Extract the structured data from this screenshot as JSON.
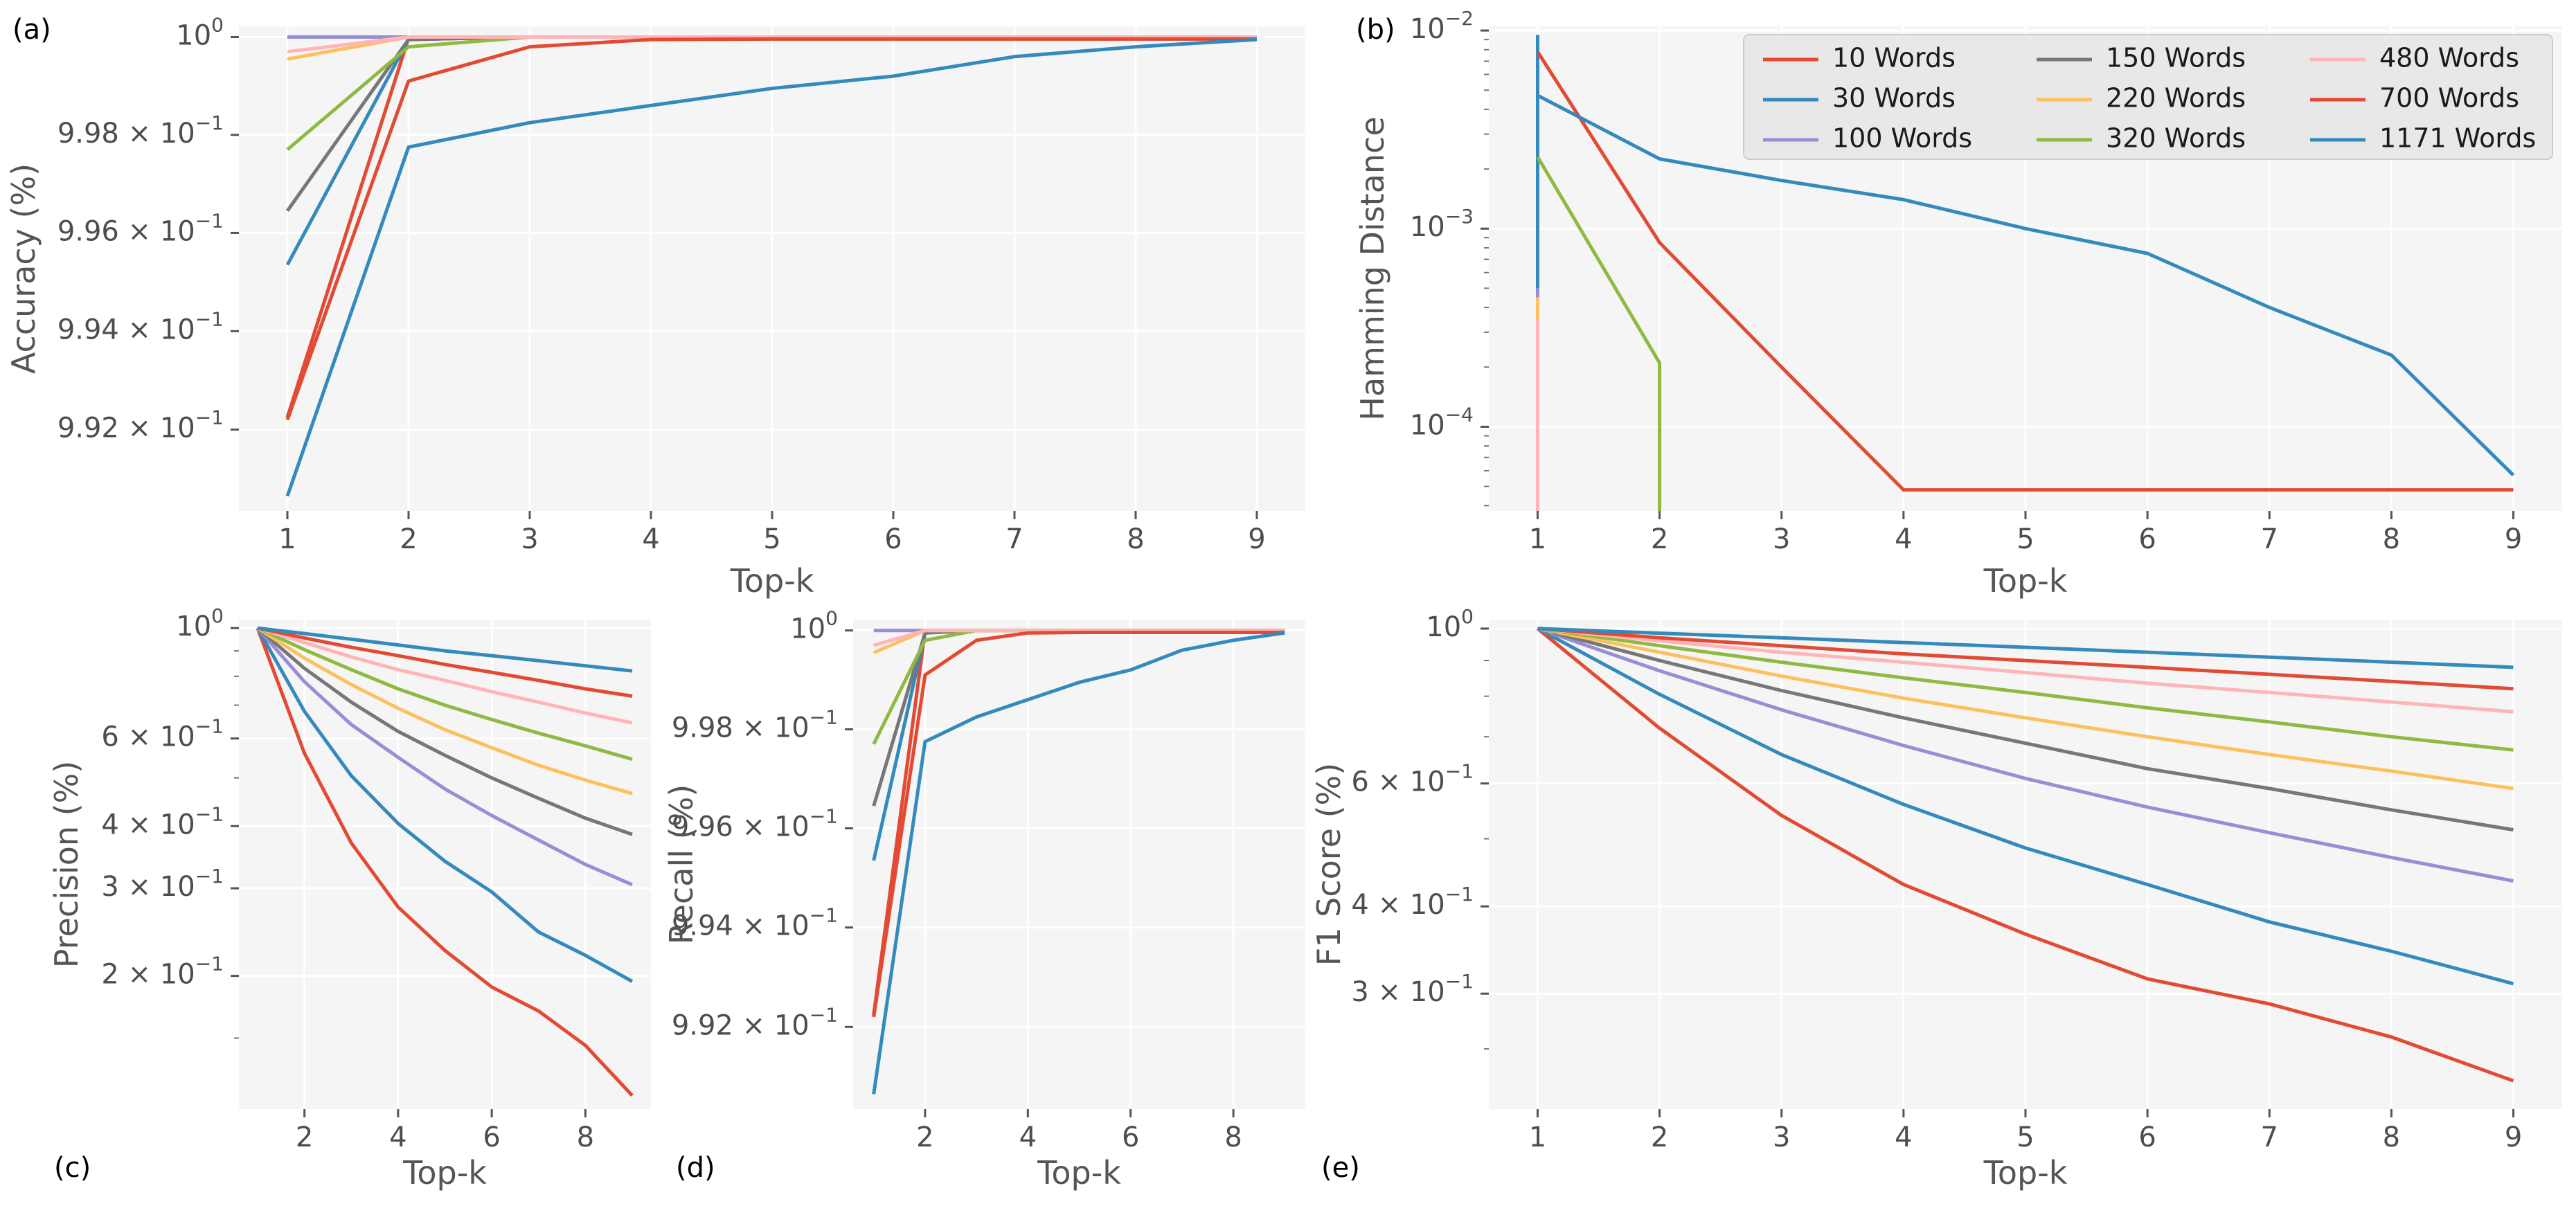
{
  "figure": {
    "series_names": [
      "10 Words",
      "30 Words",
      "100 Words",
      "150 Words",
      "220 Words",
      "320 Words",
      "480 Words",
      "700 Words",
      "1171 Words"
    ],
    "series_colors": [
      "#e24a33",
      "#348abd",
      "#988ed5",
      "#777777",
      "#fbc15e",
      "#8eba42",
      "#ffb5b8",
      "#e24a33",
      "#348abd"
    ]
  },
  "chart_data": [
    {
      "id": "a",
      "tag": "(a)",
      "type": "line",
      "yscale": "log",
      "xlabel": "Top-k",
      "ylabel": "Accuracy (%)",
      "x": [
        1,
        2,
        3,
        4,
        5,
        6,
        7,
        8,
        9
      ],
      "xlim": [
        0.6,
        9.4
      ],
      "xticks": [
        "1",
        "2",
        "3",
        "4",
        "5",
        "6",
        "7",
        "8",
        "9"
      ],
      "ylim": [
        0.99035,
        1.00022
      ],
      "yticks": [
        {
          "value": 1.0,
          "base": "10",
          "exp": "0",
          "mant": ""
        },
        {
          "value": 0.998,
          "base": "10",
          "exp": "−1",
          "mant": "9.98"
        },
        {
          "value": 0.996,
          "base": "10",
          "exp": "−1",
          "mant": "9.96"
        },
        {
          "value": 0.994,
          "base": "10",
          "exp": "−1",
          "mant": "9.94"
        },
        {
          "value": 0.992,
          "base": "10",
          "exp": "−1",
          "mant": "9.92"
        }
      ],
      "series": [
        {
          "name": "10 Words",
          "values": [
            0.99225,
            0.99998,
            1,
            1,
            1,
            1,
            1,
            1,
            1
          ]
        },
        {
          "name": "30 Words",
          "values": [
            0.99535,
            0.99995,
            1,
            1,
            1,
            1,
            1,
            1,
            1
          ]
        },
        {
          "name": "100 Words",
          "values": [
            1,
            1,
            1,
            1,
            1,
            1,
            1,
            1,
            1
          ]
        },
        {
          "name": "150 Words",
          "values": [
            0.99645,
            0.99995,
            1,
            1,
            1,
            1,
            1,
            1,
            1
          ]
        },
        {
          "name": "220 Words",
          "values": [
            0.99955,
            1,
            1,
            1,
            1,
            1,
            1,
            1,
            1
          ]
        },
        {
          "name": "320 Words",
          "values": [
            0.9977,
            0.9998,
            1,
            1,
            1,
            1,
            1,
            1,
            1
          ]
        },
        {
          "name": "480 Words",
          "values": [
            0.9997,
            1,
            1,
            1,
            1,
            1,
            1,
            1,
            1
          ]
        },
        {
          "name": "700 Words",
          "values": [
            0.9922,
            0.9991,
            0.9998,
            0.99995,
            0.99996,
            0.99996,
            0.99996,
            0.99996,
            0.99996
          ]
        },
        {
          "name": "1171 Words",
          "values": [
            0.99065,
            0.99775,
            0.99825,
            0.9986,
            0.99895,
            0.9992,
            0.9996,
            0.9998,
            0.99995
          ]
        }
      ]
    },
    {
      "id": "b",
      "tag": "(b)",
      "type": "line",
      "yscale": "log",
      "xlabel": "Top-k",
      "ylabel": "Hamming Distance",
      "x": [
        1,
        2,
        3,
        4,
        5,
        6,
        7,
        8,
        9
      ],
      "xlim": [
        0.6,
        9.4
      ],
      "xticks": [
        "1",
        "2",
        "3",
        "4",
        "5",
        "6",
        "7",
        "8",
        "9"
      ],
      "ylim": [
        3.76e-05,
        0.0105
      ],
      "yticks": [
        {
          "value": 0.01,
          "base": "10",
          "exp": "−2",
          "mant": ""
        },
        {
          "value": 0.001,
          "base": "10",
          "exp": "−3",
          "mant": ""
        },
        {
          "value": 0.0001,
          "base": "10",
          "exp": "−4",
          "mant": ""
        }
      ],
      "series": [
        {
          "name": "10 Words",
          "values": [
            0.0092,
            null,
            null,
            null,
            null,
            null,
            null,
            null,
            null
          ]
        },
        {
          "name": "30 Words",
          "values": [
            0.0095,
            null,
            null,
            null,
            null,
            null,
            null,
            null,
            null
          ]
        },
        {
          "name": "100 Words",
          "values": [
            0.0005,
            null,
            null,
            null,
            null,
            null,
            null,
            null,
            null
          ]
        },
        {
          "name": "150 Words",
          "values": [
            0.00045,
            null,
            null,
            null,
            null,
            null,
            null,
            null,
            null
          ]
        },
        {
          "name": "220 Words",
          "values": [
            0.00045,
            null,
            null,
            null,
            null,
            null,
            null,
            null,
            null
          ]
        },
        {
          "name": "320 Words",
          "values": [
            0.0023,
            0.00021,
            null,
            null,
            null,
            null,
            null,
            null,
            null
          ]
        },
        {
          "name": "480 Words",
          "values": [
            0.00035,
            null,
            null,
            null,
            null,
            null,
            null,
            null,
            null
          ]
        },
        {
          "name": "700 Words",
          "values": [
            0.0078,
            0.00085,
            0.0002,
            4.8e-05,
            4.8e-05,
            4.8e-05,
            4.8e-05,
            4.8e-05,
            4.8e-05
          ]
        },
        {
          "name": "1171 Words",
          "values": [
            0.0047,
            0.00225,
            0.00175,
            0.0014,
            0.001,
            0.00075,
            0.0004,
            0.00023,
            5.7e-05
          ]
        }
      ],
      "legend": {
        "location": "top-right",
        "columns": 3
      }
    },
    {
      "id": "c",
      "tag": "(c)",
      "type": "line",
      "yscale": "log",
      "xlabel": "Top-k",
      "ylabel": "Precision (%)",
      "x": [
        1,
        2,
        3,
        4,
        5,
        6,
        7,
        8,
        9
      ],
      "xlim": [
        0.6,
        9.4
      ],
      "xticks": [
        "2",
        "4",
        "6",
        "8"
      ],
      "xtick_values": [
        2,
        4,
        6,
        8
      ],
      "ylim": [
        0.108,
        1.04
      ],
      "yticks": [
        {
          "value": 1.0,
          "base": "10",
          "exp": "0",
          "mant": ""
        },
        {
          "value": 0.6,
          "base": "10",
          "exp": "−1",
          "mant": "6"
        },
        {
          "value": 0.4,
          "base": "10",
          "exp": "−1",
          "mant": "4"
        },
        {
          "value": 0.3,
          "base": "10",
          "exp": "−1",
          "mant": "3"
        },
        {
          "value": 0.2,
          "base": "10",
          "exp": "−1",
          "mant": "2"
        }
      ],
      "series": [
        {
          "name": "10 Words",
          "values": [
            1.0,
            0.56,
            0.37,
            0.275,
            0.225,
            0.19,
            0.17,
            0.145,
            0.115
          ]
        },
        {
          "name": "30 Words",
          "values": [
            1.0,
            0.68,
            0.505,
            0.405,
            0.34,
            0.295,
            0.245,
            0.22,
            0.195
          ]
        },
        {
          "name": "100 Words",
          "values": [
            1.0,
            0.78,
            0.64,
            0.55,
            0.475,
            0.42,
            0.375,
            0.335,
            0.305
          ]
        },
        {
          "name": "150 Words",
          "values": [
            1.0,
            0.83,
            0.71,
            0.62,
            0.555,
            0.5,
            0.455,
            0.415,
            0.385
          ]
        },
        {
          "name": "220 Words",
          "values": [
            1.0,
            0.87,
            0.77,
            0.69,
            0.625,
            0.575,
            0.53,
            0.495,
            0.465
          ]
        },
        {
          "name": "320 Words",
          "values": [
            1.0,
            0.905,
            0.825,
            0.755,
            0.7,
            0.655,
            0.615,
            0.58,
            0.545
          ]
        },
        {
          "name": "480 Words",
          "values": [
            1.0,
            0.935,
            0.875,
            0.825,
            0.785,
            0.745,
            0.71,
            0.675,
            0.645
          ]
        },
        {
          "name": "700 Words",
          "values": [
            1.0,
            0.955,
            0.915,
            0.88,
            0.845,
            0.815,
            0.785,
            0.755,
            0.73
          ]
        },
        {
          "name": "1171 Words",
          "values": [
            1.0,
            0.975,
            0.95,
            0.925,
            0.9,
            0.88,
            0.86,
            0.84,
            0.82
          ]
        }
      ]
    },
    {
      "id": "d",
      "tag": "(d)",
      "type": "line",
      "yscale": "log",
      "xlabel": "Top-k",
      "ylabel": "Recall (%)",
      "x": [
        1,
        2,
        3,
        4,
        5,
        6,
        7,
        8,
        9
      ],
      "xlim": [
        0.6,
        9.4
      ],
      "xticks": [
        "2",
        "4",
        "6",
        "8"
      ],
      "xtick_values": [
        2,
        4,
        6,
        8
      ],
      "ylim": [
        0.99035,
        1.00022
      ],
      "yticks": [
        {
          "value": 1.0,
          "base": "10",
          "exp": "0",
          "mant": ""
        },
        {
          "value": 0.998,
          "base": "10",
          "exp": "−1",
          "mant": "9.98"
        },
        {
          "value": 0.996,
          "base": "10",
          "exp": "−1",
          "mant": "9.96"
        },
        {
          "value": 0.994,
          "base": "10",
          "exp": "−1",
          "mant": "9.94"
        },
        {
          "value": 0.992,
          "base": "10",
          "exp": "−1",
          "mant": "9.92"
        }
      ],
      "series": [
        {
          "name": "10 Words",
          "values": [
            0.99225,
            0.99998,
            1,
            1,
            1,
            1,
            1,
            1,
            1
          ]
        },
        {
          "name": "30 Words",
          "values": [
            0.99535,
            0.99995,
            1,
            1,
            1,
            1,
            1,
            1,
            1
          ]
        },
        {
          "name": "100 Words",
          "values": [
            1,
            1,
            1,
            1,
            1,
            1,
            1,
            1,
            1
          ]
        },
        {
          "name": "150 Words",
          "values": [
            0.99645,
            0.99995,
            1,
            1,
            1,
            1,
            1,
            1,
            1
          ]
        },
        {
          "name": "220 Words",
          "values": [
            0.99955,
            1,
            1,
            1,
            1,
            1,
            1,
            1,
            1
          ]
        },
        {
          "name": "320 Words",
          "values": [
            0.9977,
            0.9998,
            1,
            1,
            1,
            1,
            1,
            1,
            1
          ]
        },
        {
          "name": "480 Words",
          "values": [
            0.9997,
            1,
            1,
            1,
            1,
            1,
            1,
            1,
            1
          ]
        },
        {
          "name": "700 Words",
          "values": [
            0.9922,
            0.9991,
            0.9998,
            0.99995,
            0.99996,
            0.99996,
            0.99996,
            0.99996,
            0.99996
          ]
        },
        {
          "name": "1171 Words",
          "values": [
            0.99065,
            0.99775,
            0.99825,
            0.9986,
            0.99895,
            0.9992,
            0.9996,
            0.9998,
            0.99995
          ]
        }
      ]
    },
    {
      "id": "e",
      "tag": "(e)",
      "type": "line",
      "yscale": "log",
      "xlabel": "Top-k",
      "ylabel": "F1 Score (%)",
      "x": [
        1,
        2,
        3,
        4,
        5,
        6,
        7,
        8,
        9
      ],
      "xlim": [
        0.6,
        9.4
      ],
      "xticks": [
        "1",
        "2",
        "3",
        "4",
        "5",
        "6",
        "7",
        "8",
        "9"
      ],
      "ylim": [
        0.205,
        1.03
      ],
      "yticks": [
        {
          "value": 1.0,
          "base": "10",
          "exp": "0",
          "mant": ""
        },
        {
          "value": 0.6,
          "base": "10",
          "exp": "−1",
          "mant": "6"
        },
        {
          "value": 0.4,
          "base": "10",
          "exp": "−1",
          "mant": "4"
        },
        {
          "value": 0.3,
          "base": "10",
          "exp": "−1",
          "mant": "3"
        }
      ],
      "series": [
        {
          "name": "10 Words",
          "values": [
            1.0,
            0.72,
            0.54,
            0.43,
            0.365,
            0.315,
            0.29,
            0.26,
            0.225
          ]
        },
        {
          "name": "30 Words",
          "values": [
            1.0,
            0.805,
            0.66,
            0.56,
            0.485,
            0.43,
            0.38,
            0.345,
            0.31
          ]
        },
        {
          "name": "100 Words",
          "values": [
            1.0,
            0.87,
            0.765,
            0.68,
            0.61,
            0.555,
            0.51,
            0.47,
            0.435
          ]
        },
        {
          "name": "150 Words",
          "values": [
            1.0,
            0.9,
            0.815,
            0.745,
            0.685,
            0.63,
            0.59,
            0.55,
            0.515
          ]
        },
        {
          "name": "220 Words",
          "values": [
            1.0,
            0.925,
            0.855,
            0.795,
            0.745,
            0.7,
            0.66,
            0.625,
            0.59
          ]
        },
        {
          "name": "320 Words",
          "values": [
            1.0,
            0.945,
            0.895,
            0.85,
            0.81,
            0.77,
            0.735,
            0.7,
            0.67
          ]
        },
        {
          "name": "480 Words",
          "values": [
            1.0,
            0.96,
            0.925,
            0.895,
            0.865,
            0.835,
            0.81,
            0.785,
            0.76
          ]
        },
        {
          "name": "700 Words",
          "values": [
            1.0,
            0.97,
            0.945,
            0.92,
            0.9,
            0.88,
            0.86,
            0.84,
            0.82
          ]
        },
        {
          "name": "1171 Words",
          "values": [
            1.0,
            0.985,
            0.97,
            0.955,
            0.94,
            0.925,
            0.91,
            0.895,
            0.88
          ]
        }
      ]
    }
  ]
}
